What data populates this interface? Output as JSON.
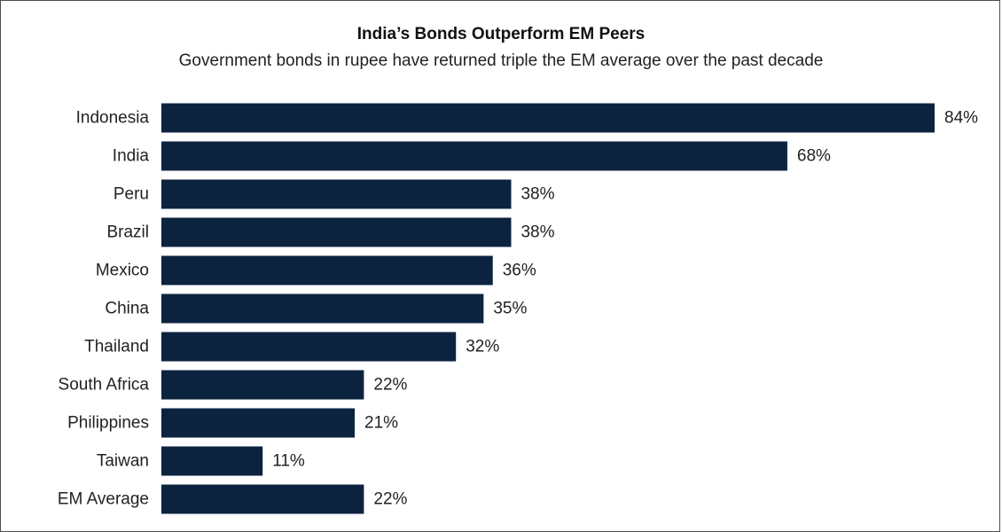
{
  "chart_data": {
    "type": "bar",
    "orientation": "horizontal",
    "title": "India’s Bonds Outperform EM Peers",
    "subtitle": "Government bonds in rupee have returned triple the EM average over the past decade",
    "categories": [
      "Indonesia",
      "India",
      "Peru",
      "Brazil",
      "Mexico",
      "China",
      "Thailand",
      "South Africa",
      "Philippines",
      "Taiwan",
      "EM Average"
    ],
    "values": [
      84,
      68,
      38,
      38,
      36,
      35,
      32,
      22,
      21,
      11,
      22
    ],
    "data_labels": [
      "84%",
      "68%",
      "38%",
      "38%",
      "36%",
      "35%",
      "32%",
      "22%",
      "21%",
      "11%",
      "22%"
    ],
    "xlim": [
      0,
      84
    ],
    "grid": false,
    "legend": false,
    "bar_color": "#0c2340"
  }
}
